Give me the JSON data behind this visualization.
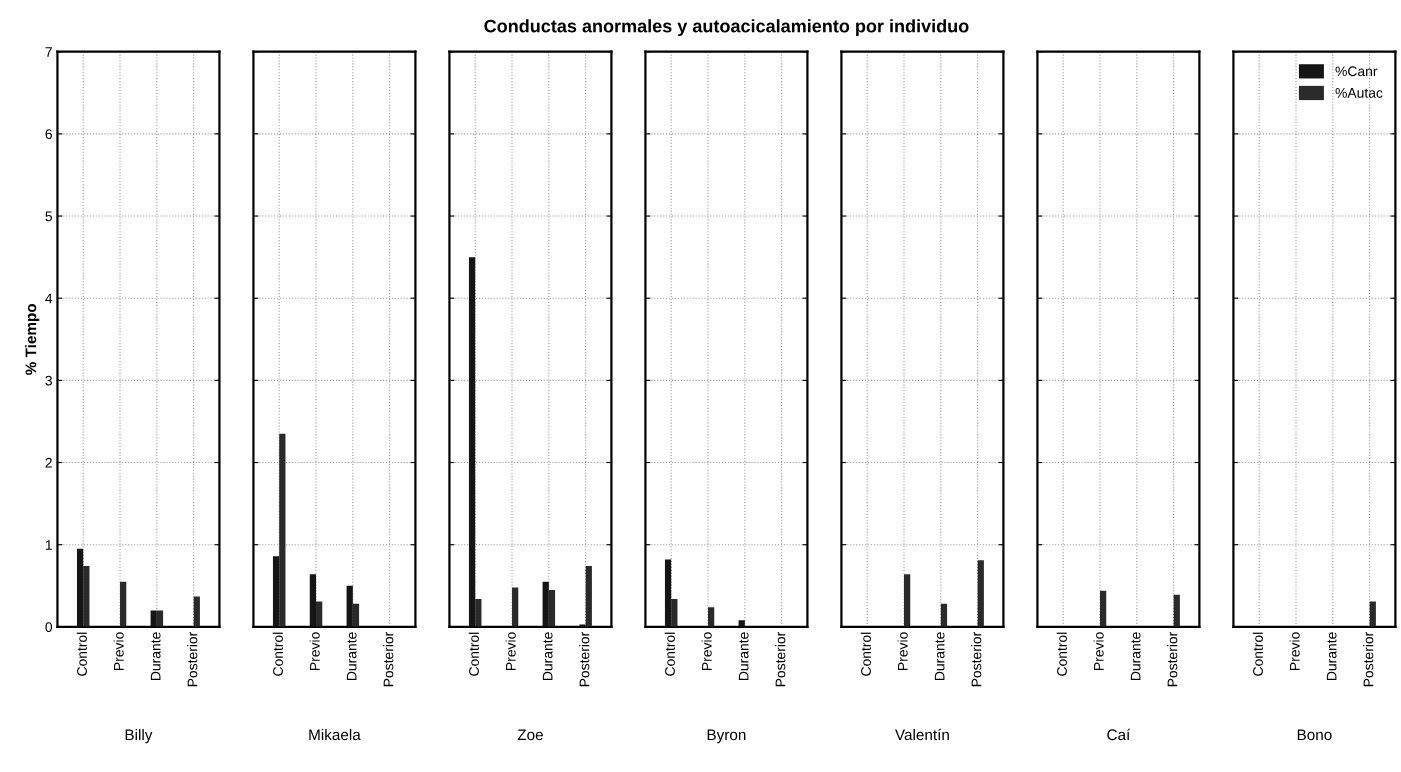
{
  "chart_data": [
    {
      "type": "bar",
      "ylabel": "% Tiempo",
      "xlabel": "Billy",
      "categories": [
        "Control",
        "Previo",
        "Durante",
        "Posterior"
      ],
      "ylim": [
        0,
        7
      ],
      "yticks": [
        0,
        1,
        2,
        3,
        4,
        5,
        6,
        7
      ],
      "grid": true,
      "series": [
        {
          "color": "#151515",
          "values": [
            0.95,
            0,
            0.2,
            0
          ]
        },
        {
          "color": "#2a2a2a",
          "values": [
            0.74,
            0.55,
            0.2,
            0.37
          ]
        }
      ]
    },
    {
      "type": "bar",
      "xlabel": "Mikaela",
      "categories": [
        "Control",
        "Previo",
        "Durante",
        "Posterior"
      ],
      "ylim": [
        0,
        7
      ],
      "tick_labels": "x",
      "grid": true,
      "series": [
        {
          "color": "#151515",
          "values": [
            0.86,
            0.64,
            0.5,
            0
          ]
        },
        {
          "color": "#2a2a2a",
          "values": [
            2.35,
            0.31,
            0.28,
            0
          ]
        }
      ]
    },
    {
      "type": "bar",
      "xlabel": "Zoe",
      "categories": [
        "Control",
        "Previo",
        "Durante",
        "Posterior"
      ],
      "ylim": [
        0,
        7
      ],
      "tick_labels": "x",
      "grid": true,
      "series": [
        {
          "color": "#151515",
          "values": [
            4.5,
            0,
            0.55,
            0.03
          ]
        },
        {
          "color": "#2a2a2a",
          "values": [
            0.34,
            0.48,
            0.45,
            0.74
          ]
        }
      ]
    },
    {
      "type": "bar",
      "title": "Conductas anormales y autoacicalamiento por individuo",
      "xlabel": "Byron",
      "categories": [
        "Control",
        "Previo",
        "Durante",
        "Posterior"
      ],
      "ylim": [
        0,
        7
      ],
      "tick_labels": "x",
      "grid": true,
      "series": [
        {
          "color": "#151515",
          "values": [
            0.82,
            0,
            0.08,
            0
          ]
        },
        {
          "color": "#2a2a2a",
          "values": [
            0.34,
            0.24,
            0,
            0
          ]
        }
      ]
    },
    {
      "type": "bar",
      "xlabel": "Valentín",
      "categories": [
        "Control",
        "Previo",
        "Durante",
        "Posterior"
      ],
      "ylim": [
        0,
        7
      ],
      "tick_labels": "x",
      "grid": true,
      "series": [
        {
          "color": "#151515",
          "values": [
            0,
            0,
            0,
            0
          ]
        },
        {
          "color": "#2a2a2a",
          "values": [
            0,
            0.64,
            0.28,
            0.81
          ]
        }
      ]
    },
    {
      "type": "bar",
      "xlabel": "Caí",
      "categories": [
        "Control",
        "Previo",
        "Durante",
        "Posterior"
      ],
      "ylim": [
        0,
        7
      ],
      "tick_labels": "x",
      "grid": true,
      "series": [
        {
          "color": "#151515",
          "values": [
            0,
            0,
            0,
            0
          ]
        },
        {
          "color": "#2a2a2a",
          "values": [
            0,
            0.44,
            0,
            0.39
          ]
        }
      ]
    },
    {
      "type": "bar",
      "xlabel": "Bono",
      "categories": [
        "Control",
        "Previo",
        "Durante",
        "Posterior"
      ],
      "ylim": [
        0,
        7
      ],
      "tick_labels": "x",
      "grid": true,
      "legend": "top right",
      "series": [
        {
          "name": "%Canr",
          "color": "#151515",
          "values": [
            0,
            0,
            0,
            0
          ]
        },
        {
          "name": "%Autac",
          "color": "#2a2a2a",
          "values": [
            0,
            0,
            0,
            0.31
          ]
        }
      ]
    }
  ]
}
